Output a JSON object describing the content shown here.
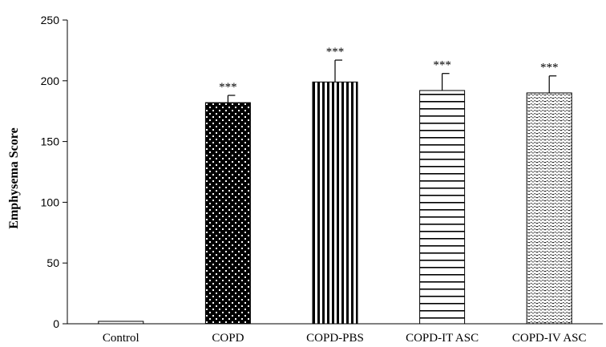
{
  "chart_data": {
    "type": "bar",
    "title": "",
    "xlabel": "",
    "ylabel": "Emphysema Score",
    "ylim": [
      0,
      250
    ],
    "yticks": [
      0,
      50,
      100,
      150,
      200,
      250
    ],
    "grid": false,
    "categories": [
      "Control",
      "COPD",
      "COPD-PBS",
      "COPD-IT ASC",
      "COPD-IV ASC"
    ],
    "values": [
      2,
      182,
      199,
      192,
      190
    ],
    "errors": [
      0,
      6,
      18,
      14,
      14
    ],
    "significance": [
      "",
      "***",
      "***",
      "***",
      "***"
    ],
    "patterns": [
      "plain",
      "dots",
      "vertical-lines",
      "horizontal-lines",
      "wavy"
    ]
  }
}
